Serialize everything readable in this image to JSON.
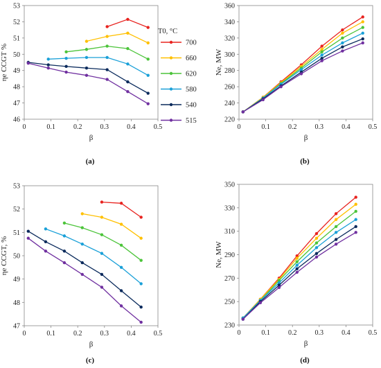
{
  "legend": {
    "title": "T0, °C",
    "entries": [
      {
        "label": "700",
        "color": "#e8231f"
      },
      {
        "label": "660",
        "color": "#ffc000"
      },
      {
        "label": "620",
        "color": "#4cc43a"
      },
      {
        "label": "580",
        "color": "#1aa0d8"
      },
      {
        "label": "540",
        "color": "#0a2a5c"
      },
      {
        "label": "515",
        "color": "#7030a0"
      }
    ]
  },
  "chart_data": [
    {
      "id": "a",
      "type": "line",
      "panel_label": "(a)",
      "xlabel": "β",
      "ylabel": "ηe CCGT %",
      "xlim": [
        0,
        0.5
      ],
      "ylim": [
        46,
        53
      ],
      "xticks": [
        "0",
        "0.1",
        "0.2",
        "0.3",
        "0.4",
        "0.5"
      ],
      "yticks": [
        "46",
        "47",
        "48",
        "49",
        "50",
        "51",
        "52",
        "53"
      ],
      "series": [
        {
          "name": "700",
          "color": "#e8231f",
          "x": [
            0.31,
            0.387,
            0.463
          ],
          "y": [
            51.7,
            52.15,
            51.65
          ]
        },
        {
          "name": "660",
          "color": "#ffc000",
          "x": [
            0.233,
            0.31,
            0.387,
            0.463
          ],
          "y": [
            50.8,
            51.1,
            51.3,
            50.7
          ]
        },
        {
          "name": "620",
          "color": "#4cc43a",
          "x": [
            0.157,
            0.233,
            0.31,
            0.387,
            0.463
          ],
          "y": [
            50.15,
            50.3,
            50.5,
            50.35,
            49.7
          ]
        },
        {
          "name": "580",
          "color": "#1aa0d8",
          "x": [
            0.09,
            0.157,
            0.233,
            0.31,
            0.387,
            0.463
          ],
          "y": [
            49.7,
            49.75,
            49.8,
            49.8,
            49.4,
            48.7
          ]
        },
        {
          "name": "540",
          "color": "#0a2a5c",
          "x": [
            0.015,
            0.09,
            0.157,
            0.233,
            0.31,
            0.387,
            0.463
          ],
          "y": [
            49.5,
            49.35,
            49.25,
            49.15,
            49.05,
            48.3,
            47.6
          ]
        },
        {
          "name": "515",
          "color": "#7030a0",
          "x": [
            0.015,
            0.09,
            0.157,
            0.233,
            0.31,
            0.387,
            0.463
          ],
          "y": [
            49.45,
            49.15,
            48.9,
            48.7,
            48.45,
            47.7,
            46.95
          ]
        }
      ]
    },
    {
      "id": "b",
      "type": "line",
      "panel_label": "(b)",
      "xlabel": "β",
      "ylabel": "Ne, MW",
      "xlim": [
        0,
        0.5
      ],
      "ylim": [
        220,
        360
      ],
      "xticks": [
        "0",
        "0.1",
        "0.2",
        "0.3",
        "0.4",
        "0.5"
      ],
      "yticks": [
        "220",
        "240",
        "260",
        "280",
        "300",
        "320",
        "340",
        "360"
      ],
      "series": [
        {
          "name": "700",
          "color": "#e8231f",
          "x": [
            0.015,
            0.09,
            0.157,
            0.233,
            0.31,
            0.387,
            0.463
          ],
          "y": [
            229,
            247,
            266,
            287,
            310,
            330,
            346
          ]
        },
        {
          "name": "660",
          "color": "#ffc000",
          "x": [
            0.015,
            0.09,
            0.157,
            0.233,
            0.31,
            0.387,
            0.463
          ],
          "y": [
            229,
            247,
            265,
            285,
            306,
            326,
            340
          ]
        },
        {
          "name": "620",
          "color": "#4cc43a",
          "x": [
            0.015,
            0.09,
            0.157,
            0.233,
            0.31,
            0.387,
            0.463
          ],
          "y": [
            229,
            246,
            264,
            283,
            303,
            320,
            333
          ]
        },
        {
          "name": "580",
          "color": "#1aa0d8",
          "x": [
            0.015,
            0.09,
            0.157,
            0.233,
            0.31,
            0.387,
            0.463
          ],
          "y": [
            229,
            246,
            263,
            281,
            299,
            314,
            326
          ]
        },
        {
          "name": "540",
          "color": "#0a2a5c",
          "x": [
            0.015,
            0.09,
            0.157,
            0.233,
            0.31,
            0.387,
            0.463
          ],
          "y": [
            229,
            245,
            261,
            278,
            295,
            309,
            319
          ]
        },
        {
          "name": "515",
          "color": "#7030a0",
          "x": [
            0.015,
            0.09,
            0.157,
            0.233,
            0.31,
            0.387,
            0.463
          ],
          "y": [
            229,
            244,
            260,
            276,
            292,
            304,
            314
          ]
        }
      ]
    },
    {
      "id": "c",
      "type": "line",
      "panel_label": "(c)",
      "xlabel": "β",
      "ylabel": "ηe CCGT, %",
      "xlim": [
        0,
        0.5
      ],
      "ylim": [
        47,
        53
      ],
      "xticks": [
        "0",
        "0.1",
        "0.2",
        "0.3",
        "0.4",
        "0.5"
      ],
      "yticks": [
        "47",
        "48",
        "49",
        "50",
        "51",
        "52",
        "53"
      ],
      "series": [
        {
          "name": "700",
          "color": "#e8231f",
          "x": [
            0.29,
            0.363,
            0.437
          ],
          "y": [
            52.3,
            52.25,
            51.65
          ]
        },
        {
          "name": "660",
          "color": "#ffc000",
          "x": [
            0.217,
            0.29,
            0.363,
            0.437
          ],
          "y": [
            51.8,
            51.65,
            51.35,
            50.75
          ]
        },
        {
          "name": "620",
          "color": "#4cc43a",
          "x": [
            0.15,
            0.217,
            0.29,
            0.363,
            0.437
          ],
          "y": [
            51.4,
            51.2,
            50.9,
            50.45,
            49.8
          ]
        },
        {
          "name": "580",
          "color": "#1aa0d8",
          "x": [
            0.08,
            0.15,
            0.217,
            0.29,
            0.363,
            0.437
          ],
          "y": [
            51.15,
            50.85,
            50.5,
            50.1,
            49.5,
            48.8
          ]
        },
        {
          "name": "540",
          "color": "#0a2a5c",
          "x": [
            0.015,
            0.08,
            0.15,
            0.217,
            0.29,
            0.363,
            0.437
          ],
          "y": [
            51.05,
            50.6,
            50.2,
            49.7,
            49.2,
            48.5,
            47.8
          ]
        },
        {
          "name": "515",
          "color": "#7030a0",
          "x": [
            0.015,
            0.08,
            0.15,
            0.217,
            0.29,
            0.363,
            0.437
          ],
          "y": [
            50.75,
            50.2,
            49.7,
            49.2,
            48.65,
            47.85,
            47.15
          ]
        }
      ]
    },
    {
      "id": "d",
      "type": "line",
      "panel_label": "(d)",
      "xlabel": "β",
      "ylabel": "Ne, MW",
      "xlim": [
        0,
        0.5
      ],
      "ylim": [
        230,
        350
      ],
      "xticks": [
        "0",
        "0.1",
        "0.2",
        "0.3",
        "0.4",
        "0.5"
      ],
      "yticks": [
        "230",
        "250",
        "270",
        "290",
        "310",
        "330",
        "350"
      ],
      "series": [
        {
          "name": "700",
          "color": "#e8231f",
          "x": [
            0.015,
            0.08,
            0.15,
            0.217,
            0.29,
            0.363,
            0.437
          ],
          "y": [
            236,
            252,
            270,
            289,
            308,
            325,
            339
          ]
        },
        {
          "name": "660",
          "color": "#ffc000",
          "x": [
            0.015,
            0.08,
            0.15,
            0.217,
            0.29,
            0.363,
            0.437
          ],
          "y": [
            236,
            252,
            269,
            287,
            304,
            320,
            333
          ]
        },
        {
          "name": "620",
          "color": "#4cc43a",
          "x": [
            0.015,
            0.08,
            0.15,
            0.217,
            0.29,
            0.363,
            0.437
          ],
          "y": [
            236,
            251,
            268,
            284,
            300,
            314,
            327
          ]
        },
        {
          "name": "580",
          "color": "#1aa0d8",
          "x": [
            0.015,
            0.08,
            0.15,
            0.217,
            0.29,
            0.363,
            0.437
          ],
          "y": [
            236,
            251,
            266,
            281,
            296,
            309,
            320
          ]
        },
        {
          "name": "540",
          "color": "#0a2a5c",
          "x": [
            0.015,
            0.08,
            0.15,
            0.217,
            0.29,
            0.363,
            0.437
          ],
          "y": [
            235,
            250,
            264,
            278,
            291,
            303,
            314
          ]
        },
        {
          "name": "515",
          "color": "#7030a0",
          "x": [
            0.015,
            0.08,
            0.15,
            0.217,
            0.29,
            0.363,
            0.437
          ],
          "y": [
            235,
            249,
            262,
            275,
            288,
            299,
            309
          ]
        }
      ]
    }
  ]
}
